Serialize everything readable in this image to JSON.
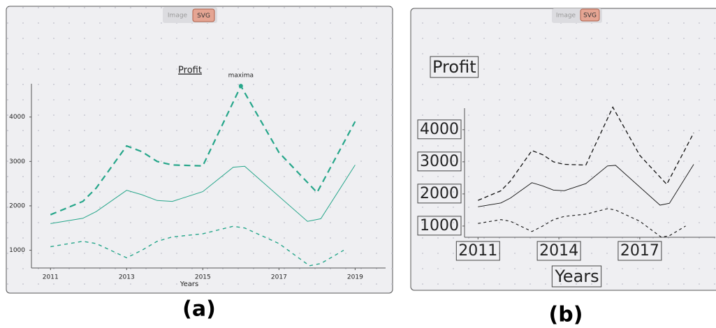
{
  "chart_data": [
    {
      "type": "line",
      "caption": "(a)",
      "toggle": [
        "Image",
        "SVG"
      ],
      "title": "Profit",
      "x_label": "Years",
      "color": "#26a68a",
      "xlim": [
        2010.5,
        2019.8
      ],
      "xticks": [
        2011,
        2013,
        2015,
        2017,
        2019
      ],
      "ylim": [
        600,
        4750
      ],
      "yticks": [
        1000,
        2000,
        3000,
        4000
      ],
      "annotations": [
        {
          "text": "maxima",
          "x": 2016,
          "y": 4700
        }
      ],
      "series": [
        {
          "style": "long-dash",
          "x": [
            2011,
            2011.85,
            2012.2,
            2013,
            2013.4,
            2013.8,
            2014.2,
            2015,
            2016,
            2017,
            2018,
            2019
          ],
          "values": [
            1800,
            2100,
            2400,
            3350,
            3220,
            3000,
            2920,
            2900,
            4700,
            3200,
            2300,
            3900
          ]
        },
        {
          "style": "solid",
          "x": [
            2011,
            2011.85,
            2012.2,
            2013,
            2013.4,
            2013.8,
            2014.2,
            2015,
            2015.8,
            2016.1,
            2017.75,
            2018.1,
            2019
          ],
          "values": [
            1600,
            1720,
            1870,
            2350,
            2250,
            2120,
            2100,
            2320,
            2870,
            2890,
            1650,
            1710,
            2920
          ]
        },
        {
          "style": "short-dash",
          "x": [
            2011,
            2011.85,
            2012.2,
            2013,
            2013.4,
            2013.8,
            2014.2,
            2015,
            2015.8,
            2016.1,
            2017,
            2017.8,
            2018.1,
            2018.7
          ],
          "values": [
            1080,
            1200,
            1150,
            830,
            1000,
            1200,
            1300,
            1370,
            1540,
            1500,
            1150,
            650,
            700,
            1000
          ]
        }
      ]
    },
    {
      "type": "line",
      "caption": "(b)",
      "toggle": [
        "Image",
        "SVG"
      ],
      "title": "Profit",
      "x_label": "Years",
      "color": "#111111",
      "xlim": [
        2010.5,
        2019.8
      ],
      "xticks": [
        2011,
        2014,
        2017
      ],
      "ylim": [
        650,
        4670
      ],
      "yticks": [
        1000,
        2000,
        3000,
        4000
      ],
      "series": [
        {
          "style": "long-dash",
          "x": [
            2011,
            2011.85,
            2012.2,
            2013,
            2013.4,
            2013.8,
            2014.2,
            2015,
            2016,
            2017,
            2018,
            2019
          ],
          "values": [
            1800,
            2100,
            2400,
            3350,
            3220,
            3000,
            2920,
            2900,
            4700,
            3200,
            2300,
            3900
          ]
        },
        {
          "style": "solid",
          "x": [
            2011,
            2011.85,
            2012.2,
            2013,
            2013.4,
            2013.8,
            2014.2,
            2015,
            2015.8,
            2016.1,
            2017.75,
            2018.1,
            2019
          ],
          "values": [
            1600,
            1720,
            1870,
            2350,
            2250,
            2120,
            2100,
            2320,
            2870,
            2890,
            1650,
            1710,
            2920
          ]
        },
        {
          "style": "short-dash",
          "x": [
            2011,
            2011.85,
            2012.2,
            2013,
            2013.4,
            2013.8,
            2014.2,
            2015,
            2015.8,
            2016.1,
            2017,
            2017.8,
            2018.1,
            2018.7
          ],
          "values": [
            1080,
            1200,
            1150,
            830,
            1000,
            1200,
            1300,
            1370,
            1540,
            1500,
            1150,
            650,
            700,
            1000
          ]
        }
      ]
    }
  ]
}
